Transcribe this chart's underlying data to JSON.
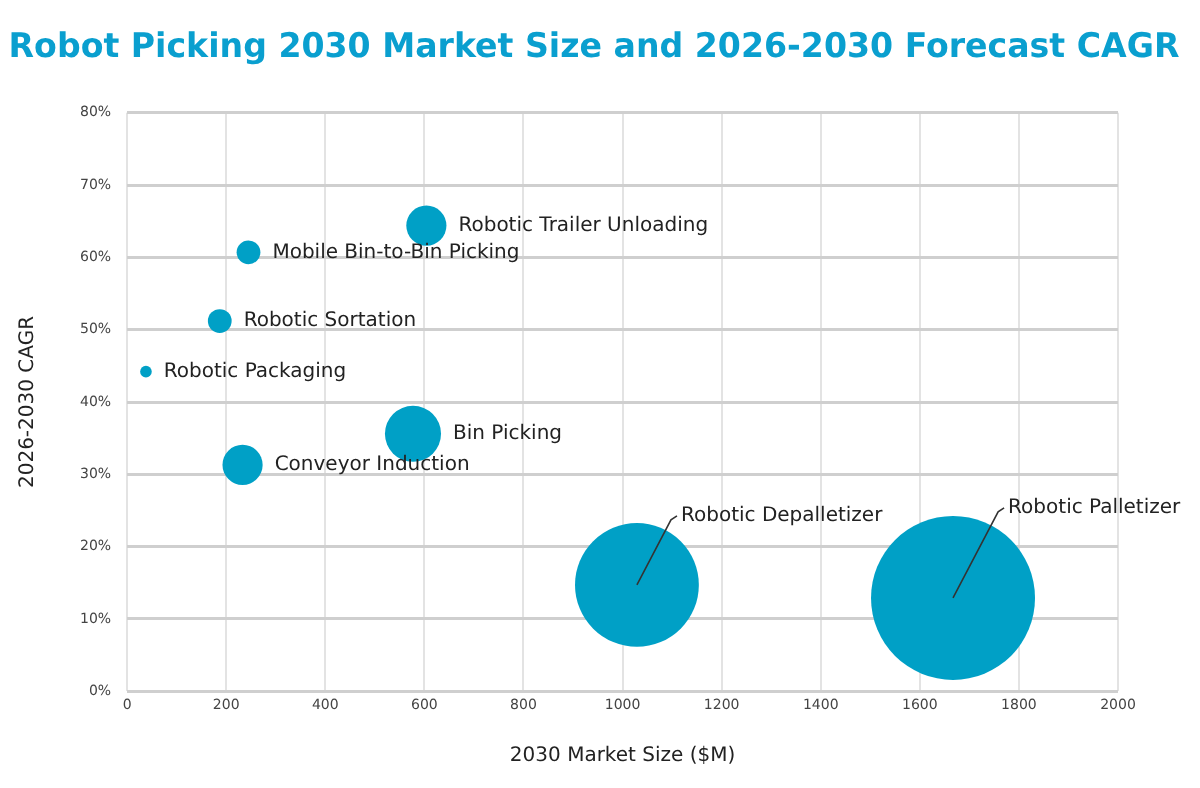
{
  "chart_data": {
    "type": "bubble",
    "title": "Robot Picking 2030 Market Size and 2026-2030 Forecast CAGR",
    "xlabel": "2030 Market Size ($M)",
    "ylabel": "2026-2030 CAGR",
    "x": [
      604,
      245,
      187,
      38,
      577,
      233,
      1029,
      1667
    ],
    "series": [
      {
        "color": "#00a0c6",
        "values": [
          64.4,
          60.7,
          51.2,
          44.2,
          35.6,
          31.3,
          14.7,
          12.9
        ],
        "sizes": [
          0.06,
          0.021,
          0.021,
          0.005,
          0.117,
          0.06,
          0.57,
          1
        ]
      }
    ],
    "xlim": [
      0,
      2000
    ],
    "xticks": [
      0,
      200,
      400,
      600,
      800,
      1000,
      1200,
      1400,
      1600,
      1800,
      2000
    ],
    "ylim": [
      0,
      80
    ],
    "yticks": [
      {
        "value": 0,
        "label": "0%"
      },
      {
        "value": 10,
        "label": "10%"
      },
      {
        "value": 20,
        "label": "20%"
      },
      {
        "value": 30,
        "label": "30%"
      },
      {
        "value": 40,
        "label": "40%"
      },
      {
        "value": 50,
        "label": "50%"
      },
      {
        "value": 60,
        "label": "60%"
      },
      {
        "value": 70,
        "label": "70%"
      },
      {
        "value": 80,
        "label": "80%"
      }
    ],
    "grid": true,
    "legend": false,
    "annotations": [
      {
        "text": "Robotic Trailer Unloading",
        "x": 604,
        "y": 64.4
      },
      {
        "text": "Mobile Bin-to-Bin Picking",
        "x": 245,
        "y": 60.7
      },
      {
        "text": "Robotic Sortation",
        "x": 187,
        "y": 51.2
      },
      {
        "text": "Robotic Packaging",
        "x": 38,
        "y": 44.2
      },
      {
        "text": "Bin Picking",
        "x": 577,
        "y": 35.6
      },
      {
        "text": "Conveyor Induction",
        "x": 233,
        "y": 31.3
      },
      {
        "text": "Robotic Depalletizer",
        "x": 1029,
        "y": 14.7
      },
      {
        "text": "Robotic Palletizer",
        "x": 1667,
        "y": 12.9
      }
    ]
  }
}
